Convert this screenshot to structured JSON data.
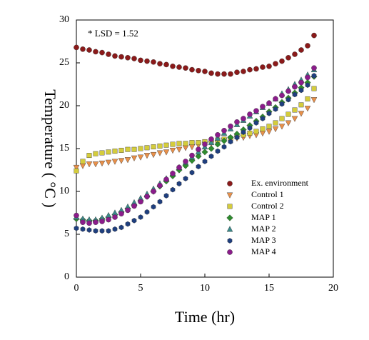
{
  "chart_data": {
    "type": "scatter",
    "annotation": "* LSD = 1.52",
    "x_label": "Time (hr)",
    "y_label": "Temperature ( °C )",
    "xlim": [
      0,
      20
    ],
    "xticks": [
      0,
      5,
      10,
      15,
      20
    ],
    "ylim": [
      0,
      30
    ],
    "yticks": [
      0,
      5,
      10,
      15,
      20,
      25,
      30
    ],
    "legend": "lower right",
    "x": [
      0,
      0.5,
      1,
      1.5,
      2,
      2.5,
      3,
      3.5,
      4,
      4.5,
      5,
      5.5,
      6,
      6.5,
      7,
      7.5,
      8,
      8.5,
      9,
      9.5,
      10,
      10.5,
      11,
      11.5,
      12,
      12.5,
      13,
      13.5,
      14,
      14.5,
      15,
      15.5,
      16,
      16.5,
      17,
      17.5,
      18,
      18.5
    ],
    "series": [
      {
        "name": "Ex. environment",
        "color": "#8b1a1a",
        "marker": "circle",
        "values": [
          26.8,
          26.6,
          26.5,
          26.3,
          26.2,
          26.0,
          25.8,
          25.7,
          25.6,
          25.5,
          25.3,
          25.2,
          25.1,
          24.9,
          24.8,
          24.6,
          24.5,
          24.4,
          24.2,
          24.1,
          24.0,
          23.8,
          23.7,
          23.7,
          23.7,
          23.9,
          24.0,
          24.2,
          24.3,
          24.5,
          24.6,
          24.9,
          25.2,
          25.6,
          26.0,
          26.5,
          27.0,
          28.2
        ]
      },
      {
        "name": "Control 1",
        "color": "#e8904a",
        "marker": "triangle-down",
        "values": [
          12.8,
          13.0,
          13.2,
          13.2,
          13.3,
          13.4,
          13.5,
          13.6,
          13.7,
          13.9,
          14.0,
          14.2,
          14.3,
          14.5,
          14.6,
          14.8,
          14.9,
          15.1,
          15.2,
          15.4,
          15.5,
          15.6,
          15.7,
          15.9,
          16.0,
          16.2,
          16.3,
          16.5,
          16.6,
          16.8,
          17.0,
          17.3,
          17.6,
          18.0,
          18.5,
          19.1,
          19.7,
          20.7
        ]
      },
      {
        "name": "Control 2",
        "color": "#d4cc3c",
        "marker": "square",
        "values": [
          12.4,
          13.5,
          14.2,
          14.4,
          14.5,
          14.6,
          14.7,
          14.8,
          14.9,
          14.9,
          15.0,
          15.1,
          15.2,
          15.3,
          15.4,
          15.5,
          15.6,
          15.6,
          15.7,
          15.7,
          15.8,
          15.9,
          16.0,
          16.1,
          16.2,
          16.4,
          16.6,
          16.8,
          17.0,
          17.3,
          17.6,
          18.0,
          18.5,
          19.0,
          19.5,
          20.1,
          20.8,
          22.0
        ]
      },
      {
        "name": "MAP 1",
        "color": "#2e8b2e",
        "marker": "diamond",
        "values": [
          6.8,
          6.7,
          6.6,
          6.6,
          6.8,
          7.0,
          7.3,
          7.6,
          8.0,
          8.4,
          8.9,
          9.4,
          10.0,
          10.6,
          11.2,
          11.8,
          12.5,
          13.0,
          13.6,
          14.1,
          14.6,
          15.0,
          15.5,
          15.9,
          16.3,
          16.7,
          17.2,
          17.7,
          18.2,
          18.7,
          19.3,
          19.8,
          20.4,
          20.9,
          21.5,
          22.1,
          22.7,
          23.4
        ]
      },
      {
        "name": "MAP 2",
        "color": "#3a8a8a",
        "marker": "triangle",
        "values": [
          7.0,
          6.8,
          6.7,
          6.7,
          6.9,
          7.2,
          7.5,
          7.8,
          8.2,
          8.7,
          9.2,
          9.7,
          10.3,
          10.9,
          11.5,
          12.1,
          12.8,
          13.4,
          14.0,
          14.6,
          15.2,
          15.7,
          16.2,
          16.8,
          17.3,
          17.8,
          18.3,
          18.8,
          19.3,
          19.8,
          20.3,
          20.8,
          21.4,
          21.9,
          22.5,
          23.0,
          23.6,
          24.2
        ]
      },
      {
        "name": "MAP 3",
        "color": "#1f3f7f",
        "marker": "hexagon",
        "values": [
          5.7,
          5.6,
          5.5,
          5.4,
          5.4,
          5.4,
          5.6,
          5.8,
          6.2,
          6.6,
          7.0,
          7.6,
          8.2,
          8.8,
          9.5,
          10.2,
          10.9,
          11.5,
          12.2,
          12.9,
          13.5,
          14.1,
          14.7,
          15.2,
          15.8,
          16.3,
          16.9,
          17.4,
          18.0,
          18.5,
          19.1,
          19.6,
          20.2,
          20.7,
          21.3,
          21.8,
          22.4,
          23.5
        ]
      },
      {
        "name": "MAP 4",
        "color": "#8b1c8b",
        "marker": "circle",
        "values": [
          7.2,
          6.4,
          6.3,
          6.4,
          6.5,
          6.7,
          7.0,
          7.4,
          7.8,
          8.3,
          8.8,
          9.4,
          10.0,
          10.7,
          11.4,
          12.1,
          12.8,
          13.5,
          14.2,
          14.9,
          15.5,
          16.1,
          16.6,
          17.1,
          17.6,
          18.1,
          18.5,
          19.0,
          19.4,
          19.9,
          20.3,
          20.8,
          21.2,
          21.7,
          22.2,
          22.7,
          23.3,
          24.4
        ]
      }
    ]
  }
}
